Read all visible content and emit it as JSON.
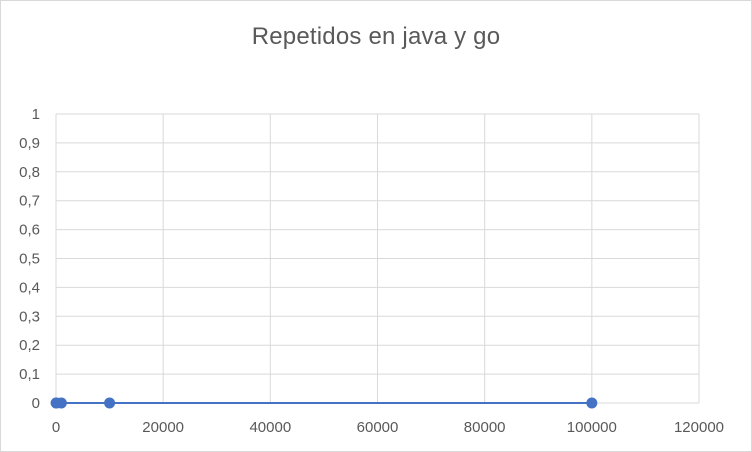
{
  "chart_data": {
    "type": "scatter",
    "title": "Repetidos en java y go",
    "xlabel": "",
    "ylabel": "",
    "xlim": [
      0,
      120000
    ],
    "ylim": [
      0,
      1
    ],
    "x_ticks": [
      "0",
      "20000",
      "40000",
      "60000",
      "80000",
      "100000",
      "120000"
    ],
    "y_ticks": [
      "0",
      "0,1",
      "0,2",
      "0,3",
      "0,4",
      "0,5",
      "0,6",
      "0,7",
      "0,8",
      "0,9",
      "1"
    ],
    "grid": true,
    "series": [
      {
        "x": [
          10,
          100,
          1000,
          10000,
          100000
        ],
        "y": [
          0,
          0,
          0,
          0,
          0
        ],
        "color": "#4472c4",
        "line": true,
        "marker": "circle"
      }
    ]
  }
}
